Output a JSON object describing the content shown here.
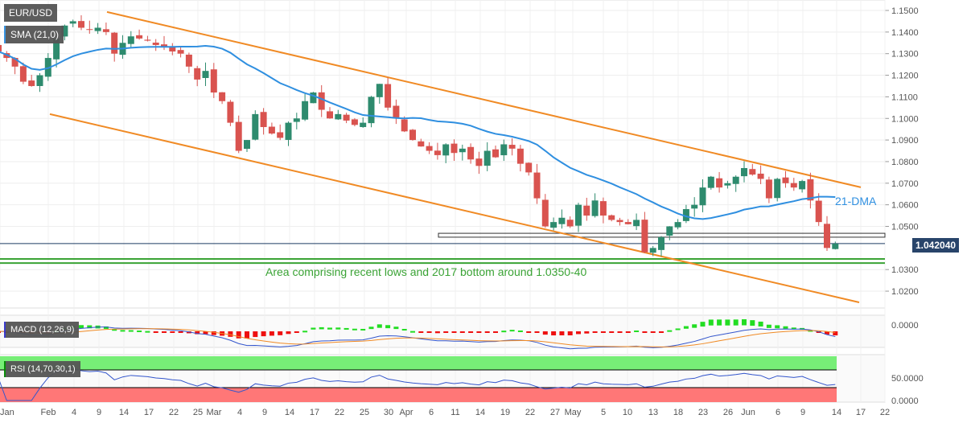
{
  "chart_data": {
    "type": "candlestick",
    "symbol": "EUR/USD",
    "indicator_labels": {
      "sma": "SMA (21,0)",
      "macd": "MACD (12,26,9)",
      "rsi": "RSI (14,70,30,1)"
    },
    "annotations": {
      "dma": "21-DMA",
      "area": "Area comprising recent lows and 2017 bottom around 1.0350-40"
    },
    "current_price": "1.042040",
    "current_price_value": 1.04204,
    "y_ticks": [
      "1.1500",
      "1.1400",
      "1.1300",
      "1.1200",
      "1.1100",
      "1.1000",
      "1.0900",
      "1.0800",
      "1.0700",
      "1.0600",
      "1.0500",
      "1.0300",
      "1.0200"
    ],
    "ylim": [
      1.015,
      1.152
    ],
    "macd_ticks": [
      "0.0000"
    ],
    "rsi_ticks": [
      "50.0000",
      "0.0000"
    ],
    "x_ticks": [
      "Jan",
      "Feb",
      "4",
      "9",
      "14",
      "17",
      "22",
      "25",
      "Mar",
      "4",
      "9",
      "14",
      "17",
      "22",
      "25",
      "30",
      "Apr",
      "6",
      "11",
      "14",
      "19",
      "22",
      "27",
      "May",
      "5",
      "10",
      "13",
      "18",
      "23",
      "26",
      "Jun",
      "6",
      "9",
      "14",
      "17",
      "22"
    ],
    "closes": [
      1.131,
      1.128,
      1.124,
      1.117,
      1.115,
      1.12,
      1.128,
      1.137,
      1.143,
      1.145,
      1.142,
      1.141,
      1.142,
      1.14,
      1.13,
      1.135,
      1.138,
      1.137,
      1.136,
      1.134,
      1.133,
      1.131,
      1.13,
      1.124,
      1.118,
      1.122,
      1.112,
      1.108,
      1.098,
      1.085,
      1.09,
      1.102,
      1.096,
      1.093,
      1.091,
      1.098,
      1.1,
      1.108,
      1.112,
      1.104,
      1.1,
      1.102,
      1.099,
      1.097,
      1.098,
      1.11,
      1.116,
      1.105,
      1.1,
      1.094,
      1.09,
      1.087,
      1.085,
      1.083,
      1.088,
      1.084,
      1.086,
      1.081,
      1.078,
      1.085,
      1.082,
      1.088,
      1.086,
      1.079,
      1.075,
      1.063,
      1.05,
      1.052,
      1.054,
      1.05,
      1.06,
      1.055,
      1.062,
      1.055,
      1.053,
      1.052,
      1.051,
      1.053,
      1.038,
      1.04,
      1.045,
      1.05,
      1.052,
      1.058,
      1.06,
      1.068,
      1.073,
      1.068,
      1.07,
      1.073,
      1.077,
      1.074,
      1.072,
      1.063,
      1.072,
      1.07,
      1.068,
      1.071,
      1.062,
      1.052,
      1.04,
      1.042
    ],
    "upper_channel": [
      1.1493,
      1.0681
    ],
    "lower_channel": [
      1.102,
      1.0148
    ],
    "resistance_box": [
      1.045,
      1.0468
    ],
    "support_lines": [
      1.0349,
      1.033
    ],
    "colors": {
      "up": "#2e8b6e",
      "down": "#d9534f",
      "sma": "#2f8fe0",
      "channel": "#f08a24",
      "support": "#3aa335",
      "macd": "#3355cc",
      "signal": "#f08a24",
      "hist_up": "#22dd22",
      "hist_down": "#ee1111",
      "rsi_over": "#77ee77",
      "rsi_under": "#f77"
    }
  }
}
